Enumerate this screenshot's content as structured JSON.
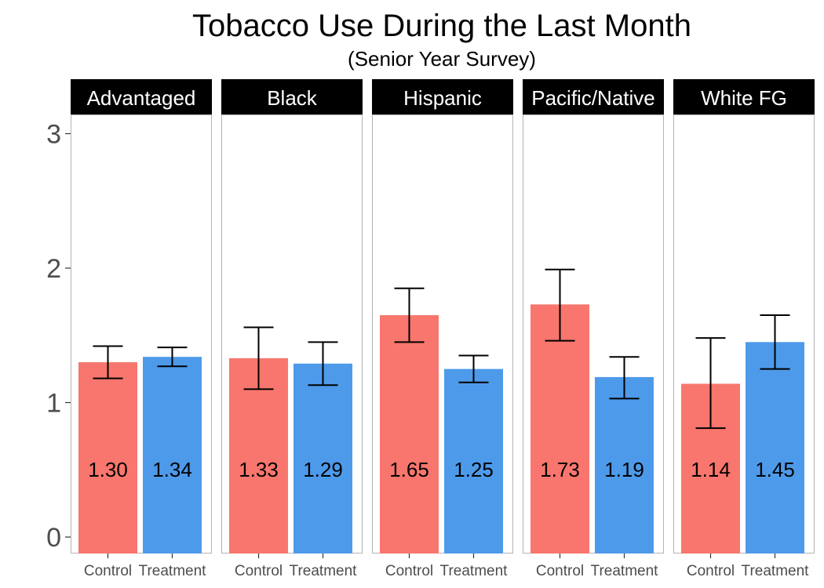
{
  "chart_data": {
    "type": "bar",
    "title": "Tobacco Use During the Last Month",
    "subtitle": "(Senior Year Survey)",
    "xlabel": "",
    "ylabel": "",
    "ylim": [
      0,
      3.15
    ],
    "yticks": [
      0,
      1,
      2,
      3
    ],
    "grid": false,
    "categories": [
      "Control",
      "Treatment"
    ],
    "colors": {
      "Control": "#F8766D",
      "Treatment": "#4E9AEA"
    },
    "panels": [
      {
        "name": "Advantaged",
        "bars": [
          {
            "group": "Control",
            "value": 1.3,
            "label": "1.30",
            "err_low": 1.18,
            "err_high": 1.42
          },
          {
            "group": "Treatment",
            "value": 1.34,
            "label": "1.34",
            "err_low": 1.27,
            "err_high": 1.41
          }
        ]
      },
      {
        "name": "Black",
        "bars": [
          {
            "group": "Control",
            "value": 1.33,
            "label": "1.33",
            "err_low": 1.1,
            "err_high": 1.56
          },
          {
            "group": "Treatment",
            "value": 1.29,
            "label": "1.29",
            "err_low": 1.13,
            "err_high": 1.45
          }
        ]
      },
      {
        "name": "Hispanic",
        "bars": [
          {
            "group": "Control",
            "value": 1.65,
            "label": "1.65",
            "err_low": 1.45,
            "err_high": 1.85
          },
          {
            "group": "Treatment",
            "value": 1.25,
            "label": "1.25",
            "err_low": 1.15,
            "err_high": 1.35
          }
        ]
      },
      {
        "name": "Pacific/Native",
        "bars": [
          {
            "group": "Control",
            "value": 1.73,
            "label": "1.73",
            "err_low": 1.46,
            "err_high": 1.99
          },
          {
            "group": "Treatment",
            "value": 1.19,
            "label": "1.19",
            "err_low": 1.03,
            "err_high": 1.34
          }
        ]
      },
      {
        "name": "White FG",
        "bars": [
          {
            "group": "Control",
            "value": 1.14,
            "label": "1.14",
            "err_low": 0.81,
            "err_high": 1.48
          },
          {
            "group": "Treatment",
            "value": 1.45,
            "label": "1.45",
            "err_low": 1.25,
            "err_high": 1.65
          }
        ]
      }
    ]
  }
}
